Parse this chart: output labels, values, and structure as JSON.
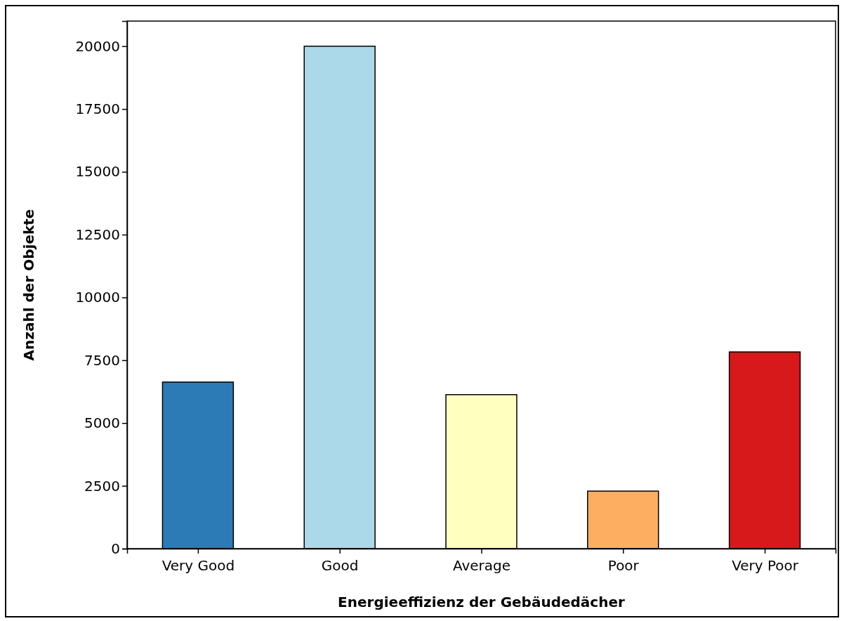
{
  "chart_data": {
    "type": "bar",
    "xlabel": "Energieeffizienz der Gebäudedächer",
    "ylabel": "Anzahl der Objekte",
    "categories": [
      "Very Good",
      "Good",
      "Average",
      "Poor",
      "Very Poor"
    ],
    "values": [
      6630,
      20000,
      6130,
      2290,
      7830
    ],
    "colors": [
      "#2c7bb6",
      "#abd9e9",
      "#ffffbf",
      "#fdae61",
      "#d7191c"
    ],
    "ylim": [
      0,
      21000
    ],
    "yticks": [
      0,
      2500,
      5000,
      7500,
      10000,
      12500,
      15000,
      17500,
      20000
    ]
  }
}
